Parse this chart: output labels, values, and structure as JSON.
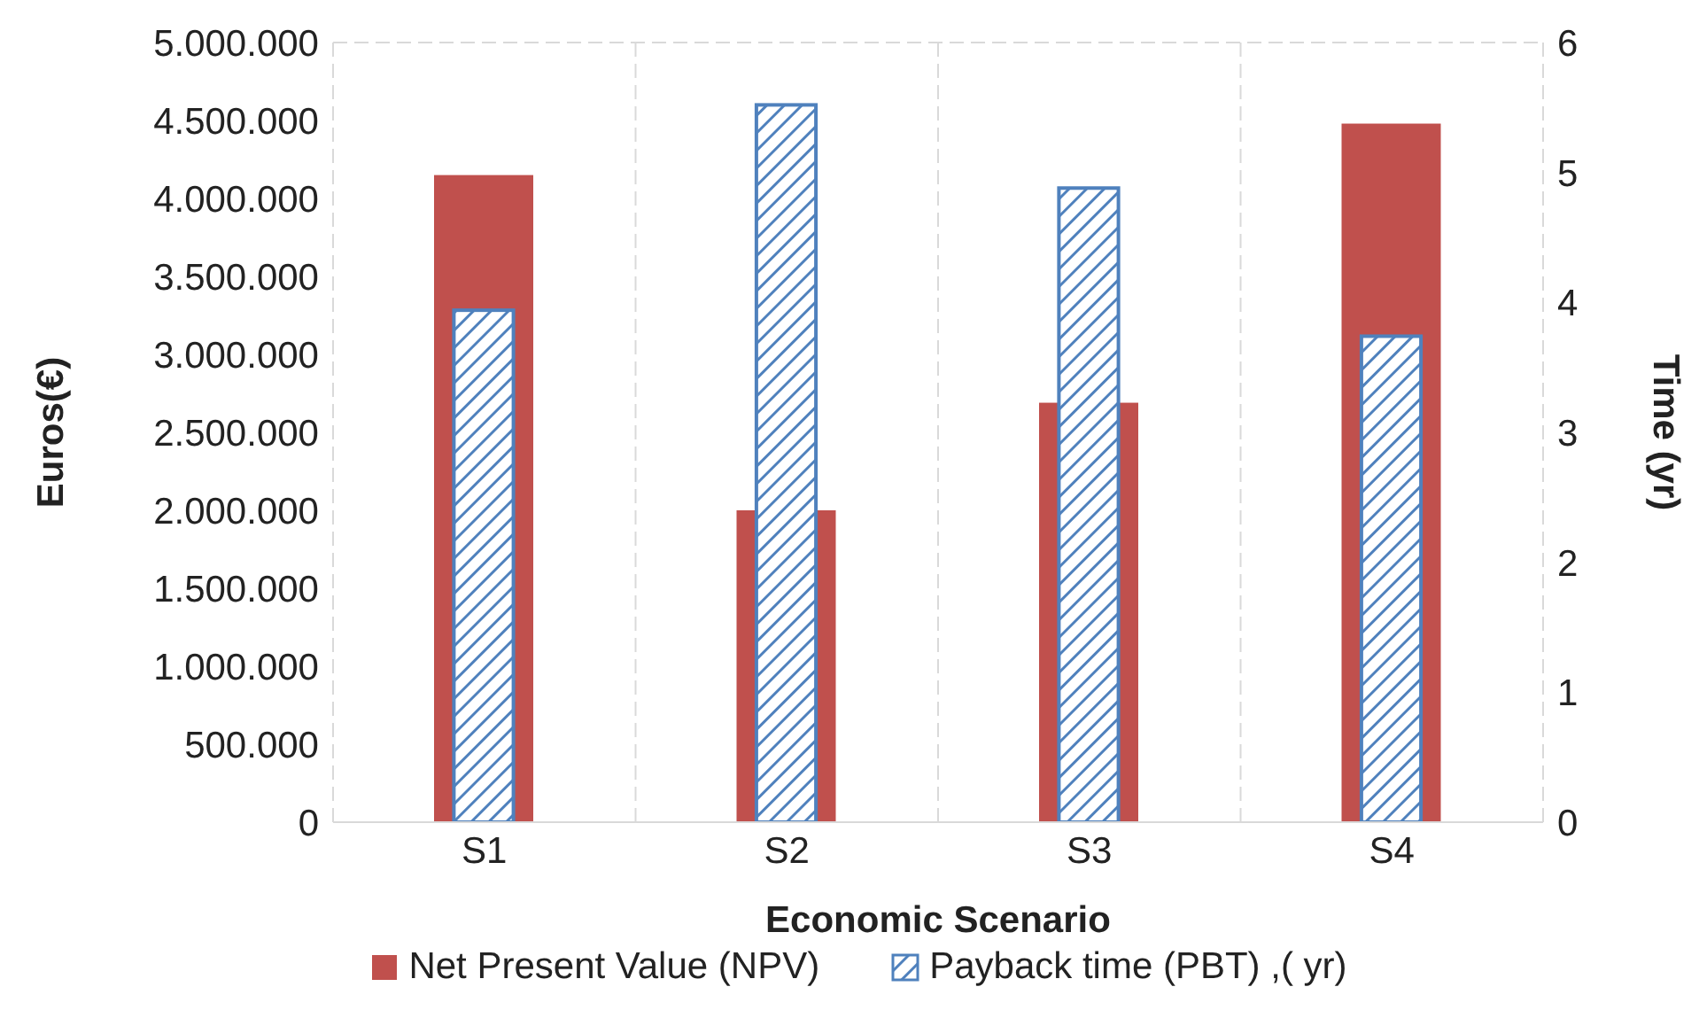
{
  "chart_data": {
    "type": "bar",
    "xlabel": "Economic Scenario",
    "ylabel": "Euros(€)",
    "y2label": "Time (yr)",
    "categories": [
      "S1",
      "S2",
      "S3",
      "S4"
    ],
    "series": [
      {
        "name": "Net Present Value (NPV)",
        "color": "#c0504d",
        "values": [
          4150000,
          2000000,
          2690000,
          4480000
        ]
      },
      {
        "name": "Payback time (PBT) ,( yr)",
        "color": "#4f81bd",
        "axis": "y2",
        "values": [
          3.94,
          5.52,
          4.88,
          3.74
        ]
      }
    ],
    "ylim": [
      0,
      5000000
    ],
    "yticks": [
      {
        "value": 0,
        "label": "0"
      },
      {
        "value": 500000,
        "label": "500.000"
      },
      {
        "value": 1000000,
        "label": "1.000.000"
      },
      {
        "value": 1500000,
        "label": "1.500.000"
      },
      {
        "value": 2000000,
        "label": "2.000.000"
      },
      {
        "value": 2500000,
        "label": "2.500.000"
      },
      {
        "value": 3000000,
        "label": "3.000.000"
      },
      {
        "value": 3500000,
        "label": "3.500.000"
      },
      {
        "value": 4000000,
        "label": "4.000.000"
      },
      {
        "value": 4500000,
        "label": "4.500.000"
      },
      {
        "value": 5000000,
        "label": "5.000.000"
      }
    ],
    "y2lim": [
      0,
      6
    ],
    "y2ticks": [
      0,
      1,
      2,
      3,
      4,
      5,
      6
    ],
    "grid": true,
    "legend": "bottom"
  }
}
